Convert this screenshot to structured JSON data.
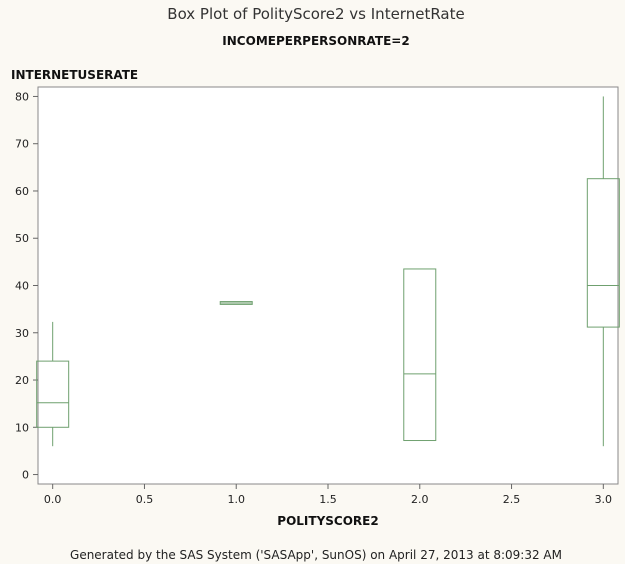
{
  "chart_data": {
    "type": "box",
    "title": "Box Plot of PolityScore2 vs InternetRate",
    "subtitle": "INCOMEPERPERSONRATE=2",
    "xlabel": "POLITYSCORE2",
    "ylabel": "INTERNETUSERATE",
    "xlim": [
      -0.08,
      3.08
    ],
    "ylim": [
      -2,
      82
    ],
    "x_ticks": [
      "0.0",
      "0.5",
      "1.0",
      "1.5",
      "2.0",
      "2.5",
      "3.0"
    ],
    "y_ticks": [
      "0",
      "10",
      "20",
      "30",
      "40",
      "50",
      "60",
      "70",
      "80"
    ],
    "boxes": [
      {
        "x": 0.0,
        "whisker_low": 6,
        "q1": 10,
        "median": 15.2,
        "q3": 24,
        "whisker_high": 32.3
      },
      {
        "x": 1.0,
        "whisker_low": 36,
        "q1": 36,
        "median": 36.3,
        "q3": 36.6,
        "whisker_high": 36.6
      },
      {
        "x": 2.0,
        "whisker_low": 7.2,
        "q1": 7.2,
        "median": 21.3,
        "q3": 43.5,
        "whisker_high": 43.5
      },
      {
        "x": 3.0,
        "whisker_low": 6,
        "q1": 31.2,
        "median": 40,
        "q3": 62.6,
        "whisker_high": 80
      }
    ],
    "grid": false
  },
  "footnote": "Generated by the SAS System ('SASApp', SunOS) on April 27, 2013 at 8:09:32 AM"
}
